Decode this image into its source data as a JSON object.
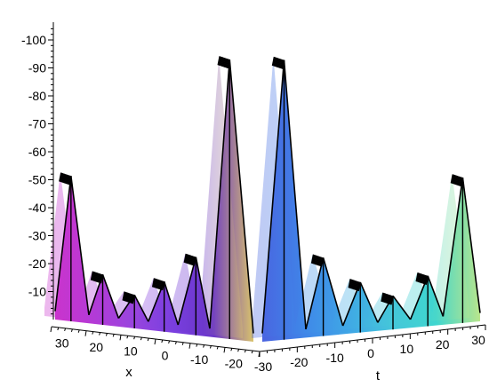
{
  "chart_data": {
    "type": "surface",
    "title": "",
    "z_axis": {
      "label": "",
      "ticks": [
        "-10",
        "-20",
        "-30",
        "-40",
        "-50",
        "-60",
        "-70",
        "-80",
        "-90",
        "-100"
      ]
    },
    "x_axis": {
      "label": "x",
      "ticks": [
        "30",
        "20",
        "10",
        "0",
        "-10",
        "-20"
      ]
    },
    "t_axis": {
      "label": "t",
      "ticks": [
        "-30",
        "-20",
        "-10",
        "0",
        "10",
        "20",
        "30"
      ]
    },
    "panels": [
      {
        "colors": [
          "#cc33cc",
          "#b43ad6",
          "#9a45de",
          "#7a3fe0",
          "#6a36c8",
          "#d9c36a"
        ],
        "peaks": [
          {
            "pos": 0.0,
            "value": 3
          },
          {
            "pos": 0.08,
            "value": 52
          },
          {
            "pos": 0.17,
            "value": 3
          },
          {
            "pos": 0.24,
            "value": 18
          },
          {
            "pos": 0.32,
            "value": 3
          },
          {
            "pos": 0.4,
            "value": 12
          },
          {
            "pos": 0.47,
            "value": 3
          },
          {
            "pos": 0.55,
            "value": 18
          },
          {
            "pos": 0.62,
            "value": 3
          },
          {
            "pos": 0.71,
            "value": 28
          },
          {
            "pos": 0.78,
            "value": 3
          },
          {
            "pos": 0.88,
            "value": 100
          },
          {
            "pos": 1.0,
            "value": 3
          }
        ]
      },
      {
        "colors": [
          "#4a63e0",
          "#3f86e8",
          "#3fa6e6",
          "#45c6da",
          "#3fd6cf",
          "#b9e58c"
        ],
        "peaks": [
          {
            "pos": 0.0,
            "value": 3
          },
          {
            "pos": 0.1,
            "value": 100
          },
          {
            "pos": 0.2,
            "value": 3
          },
          {
            "pos": 0.28,
            "value": 28
          },
          {
            "pos": 0.37,
            "value": 3
          },
          {
            "pos": 0.45,
            "value": 18
          },
          {
            "pos": 0.53,
            "value": 3
          },
          {
            "pos": 0.6,
            "value": 12
          },
          {
            "pos": 0.68,
            "value": 3
          },
          {
            "pos": 0.76,
            "value": 18
          },
          {
            "pos": 0.83,
            "value": 3
          },
          {
            "pos": 0.92,
            "value": 52
          },
          {
            "pos": 1.0,
            "value": 3
          }
        ]
      }
    ]
  }
}
